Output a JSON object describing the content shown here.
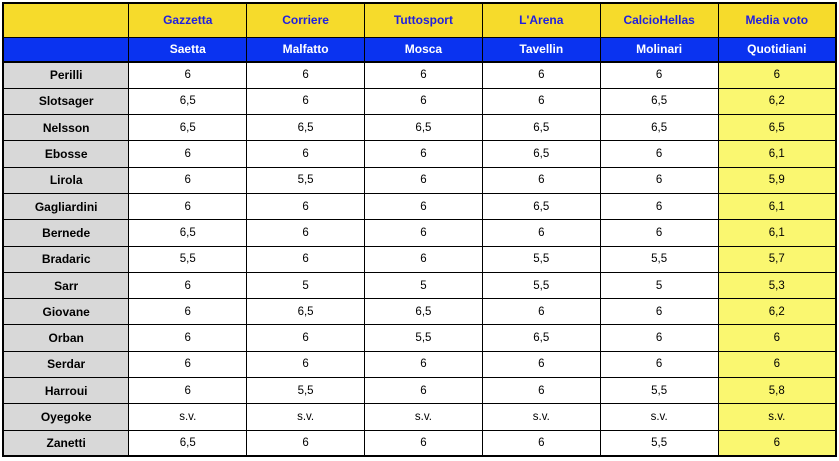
{
  "chart_data": {
    "type": "table",
    "header_row_newspapers": [
      "Gazzetta",
      "Corriere",
      "Tuttosport",
      "L'Arena",
      "CalcioHellas",
      "Media voto"
    ],
    "header_row_journalists": [
      "Saetta",
      "Malfatto",
      "Mosca",
      "Tavellin",
      "Molinari",
      "Quotidiani"
    ],
    "rows": [
      {
        "player": "Perilli",
        "votes": [
          "6",
          "6",
          "6",
          "6",
          "6"
        ],
        "media_voto": "6"
      },
      {
        "player": "Slotsager",
        "votes": [
          "6,5",
          "6",
          "6",
          "6",
          "6,5"
        ],
        "media_voto": "6,2"
      },
      {
        "player": "Nelsson",
        "votes": [
          "6,5",
          "6,5",
          "6,5",
          "6,5",
          "6,5"
        ],
        "media_voto": "6,5"
      },
      {
        "player": "Ebosse",
        "votes": [
          "6",
          "6",
          "6",
          "6,5",
          "6"
        ],
        "media_voto": "6,1"
      },
      {
        "player": "Lirola",
        "votes": [
          "6",
          "5,5",
          "6",
          "6",
          "6"
        ],
        "media_voto": "5,9"
      },
      {
        "player": "Gagliardini",
        "votes": [
          "6",
          "6",
          "6",
          "6,5",
          "6"
        ],
        "media_voto": "6,1"
      },
      {
        "player": "Bernede",
        "votes": [
          "6,5",
          "6",
          "6",
          "6",
          "6"
        ],
        "media_voto": "6,1"
      },
      {
        "player": "Bradaric",
        "votes": [
          "5,5",
          "6",
          "6",
          "5,5",
          "5,5"
        ],
        "media_voto": "5,7"
      },
      {
        "player": "Sarr",
        "votes": [
          "6",
          "5",
          "5",
          "5,5",
          "5"
        ],
        "media_voto": "5,3"
      },
      {
        "player": "Giovane",
        "votes": [
          "6",
          "6,5",
          "6,5",
          "6",
          "6"
        ],
        "media_voto": "6,2"
      },
      {
        "player": "Orban",
        "votes": [
          "6",
          "6",
          "5,5",
          "6,5",
          "6"
        ],
        "media_voto": "6"
      },
      {
        "player": "Serdar",
        "votes": [
          "6",
          "6",
          "6",
          "6",
          "6"
        ],
        "media_voto": "6"
      },
      {
        "player": "Harroui",
        "votes": [
          "6",
          "5,5",
          "6",
          "6",
          "5,5"
        ],
        "media_voto": "5,8"
      },
      {
        "player": "Oyegoke",
        "votes": [
          "s.v.",
          "s.v.",
          "s.v.",
          "s.v.",
          "s.v."
        ],
        "media_voto": "s.v."
      },
      {
        "player": "Zanetti",
        "votes": [
          "6,5",
          "6",
          "6",
          "6",
          "5,5"
        ],
        "media_voto": "6"
      }
    ]
  },
  "colors": {
    "header_yellow": "#F6DB2B",
    "header_blue": "#0A33F0",
    "header_text_blue": "#2020E0",
    "media_cell_yellow": "#FAF770",
    "player_cell_gray": "#D8D8D8",
    "border_black": "#000000"
  }
}
